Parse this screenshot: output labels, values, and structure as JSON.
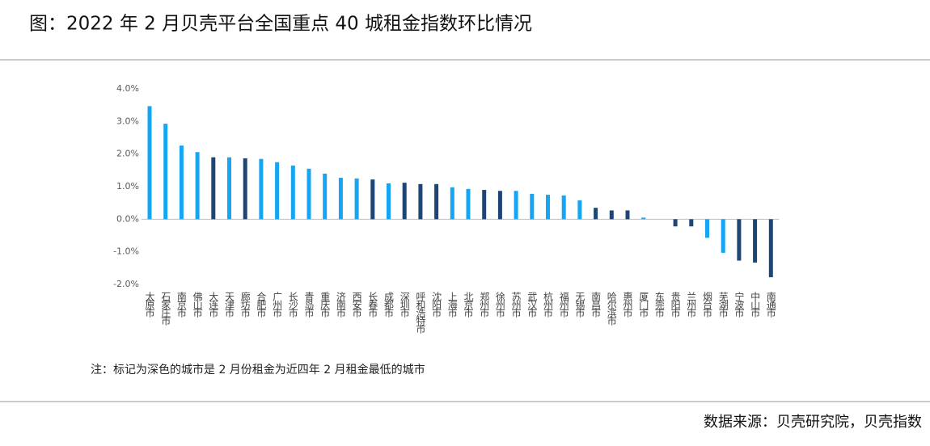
{
  "chart_data": {
    "type": "bar",
    "title": "图：2022 年 2 月贝壳平台全国重点 40 城租金指数环比情况",
    "note": "注：标记为深色的城市是 2 月份租金为近四年 2 月租金最低的城市",
    "source": "数据来源：贝壳研究院，贝壳指数",
    "categories": [
      "太原市",
      "石家庄市",
      "南京市",
      "佛山市",
      "大连市",
      "天津市",
      "廊坊市",
      "合肥市",
      "广州市",
      "长沙市",
      "青岛市",
      "重庆市",
      "济南市",
      "西安市",
      "长春市",
      "成都市",
      "深圳市",
      "呼和浩特市",
      "沈阳市",
      "上海市",
      "北京市",
      "郑州市",
      "徐州市",
      "苏州市",
      "武汉市",
      "杭州市",
      "福州市",
      "无锡市",
      "南昌市",
      "哈尔滨市",
      "惠州市",
      "厦门市",
      "东莞市",
      "贵阳市",
      "兰州市",
      "烟台市",
      "芜湖市",
      "宁波市",
      "中山市",
      "南通市"
    ],
    "values": [
      3.47,
      2.93,
      2.26,
      2.06,
      1.9,
      1.9,
      1.87,
      1.85,
      1.75,
      1.65,
      1.55,
      1.4,
      1.27,
      1.25,
      1.22,
      1.1,
      1.12,
      1.08,
      1.08,
      0.98,
      0.93,
      0.9,
      0.87,
      0.87,
      0.78,
      0.75,
      0.73,
      0.58,
      0.35,
      0.27,
      0.27,
      0.05,
      0.0,
      -0.22,
      -0.22,
      -0.57,
      -1.03,
      -1.27,
      -1.33,
      -1.78
    ],
    "colors": [
      "#16a5f2",
      "#16a5f2",
      "#16a5f2",
      "#16a5f2",
      "#1f4575",
      "#16a5f2",
      "#1f4575",
      "#16a5f2",
      "#16a5f2",
      "#16a5f2",
      "#16a5f2",
      "#16a5f2",
      "#16a5f2",
      "#16a5f2",
      "#1f4575",
      "#16a5f2",
      "#1f4575",
      "#1f4575",
      "#1f4575",
      "#16a5f2",
      "#16a5f2",
      "#1f4575",
      "#1f4575",
      "#16a5f2",
      "#16a5f2",
      "#16a5f2",
      "#16a5f2",
      "#16a5f2",
      "#1f4575",
      "#1f4575",
      "#1f4575",
      "#16a5f2",
      "#16a5f2",
      "#1f4575",
      "#1f4575",
      "#16a5f2",
      "#16a5f2",
      "#1f4575",
      "#1f4575",
      "#1f4575"
    ],
    "ylim": [
      -2,
      4
    ],
    "yticks": [
      {
        "value": -2,
        "label": "-2.0%"
      },
      {
        "value": -1,
        "label": "-1.0%"
      },
      {
        "value": 0,
        "label": "0.0%"
      },
      {
        "value": 1,
        "label": "1.0%"
      },
      {
        "value": 2,
        "label": "2.0%"
      },
      {
        "value": 3,
        "label": "3.0%"
      },
      {
        "value": 4,
        "label": "4.0%"
      }
    ]
  }
}
